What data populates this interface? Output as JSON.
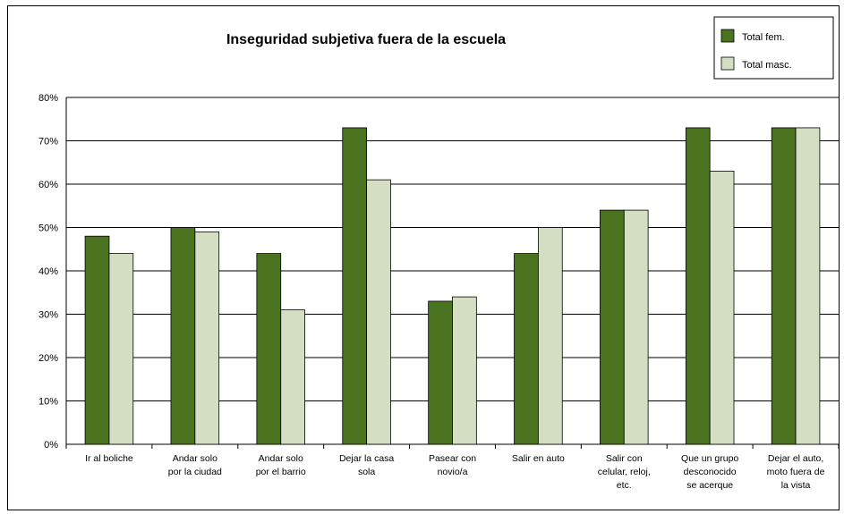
{
  "chart_data": {
    "type": "bar",
    "title": "Inseguridad subjetiva fuera de la escuela",
    "xlabel": "",
    "ylabel": "",
    "ylim": [
      0,
      80
    ],
    "yticks": [
      "0%",
      "10%",
      "20%",
      "30%",
      "40%",
      "50%",
      "60%",
      "70%",
      "80%"
    ],
    "grid": true,
    "legend_position": "top-right",
    "categories": [
      [
        "Ir al boliche"
      ],
      [
        "Andar solo",
        "por la ciudad"
      ],
      [
        "Andar solo",
        "por el barrio"
      ],
      [
        "Dejar la casa",
        "sola"
      ],
      [
        "Pasear con",
        "novio/a"
      ],
      [
        "Salir en auto"
      ],
      [
        "Salir con",
        "celular, reloj,",
        "etc."
      ],
      [
        "Que un grupo",
        "desconocido",
        "se acerque"
      ],
      [
        "Dejar el auto,",
        "moto fuera de",
        "la vista"
      ]
    ],
    "series": [
      {
        "name": "Total fem.",
        "color": "#4a7320",
        "values": [
          48,
          50,
          44,
          73,
          33,
          44,
          54,
          73,
          73
        ]
      },
      {
        "name": "Total masc.",
        "color": "#d3dec3",
        "values": [
          44,
          49,
          31,
          61,
          34,
          50,
          54,
          63,
          73
        ]
      }
    ]
  }
}
